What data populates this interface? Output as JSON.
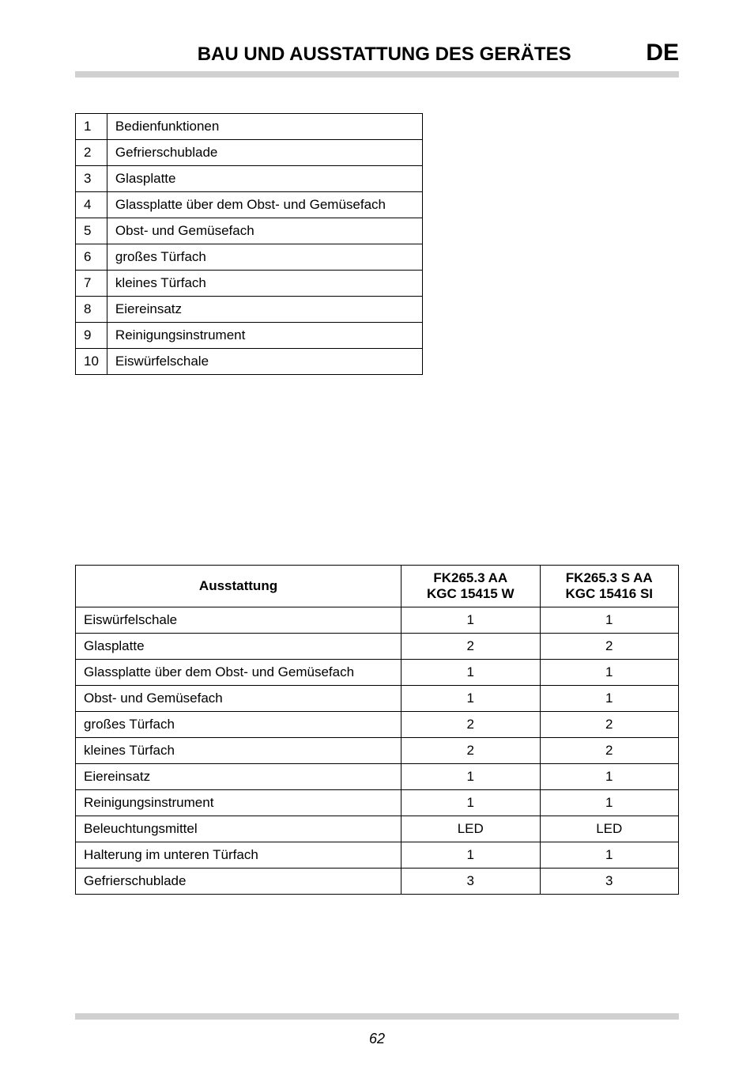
{
  "header": {
    "title": "BAU UND AUSSTATTUNG DES GERÄTES",
    "lang": "DE"
  },
  "parts_table": {
    "rows": [
      {
        "n": "1",
        "label": "Bedienfunktionen"
      },
      {
        "n": "2",
        "label": "Gefrierschublade"
      },
      {
        "n": "3",
        "label": "Glasplatte"
      },
      {
        "n": "4",
        "label": "Glassplatte über dem Obst- und Gemüsefach"
      },
      {
        "n": "5",
        "label": "Obst- und Gemüsefach"
      },
      {
        "n": "6",
        "label": "großes Türfach"
      },
      {
        "n": "7",
        "label": "kleines Türfach"
      },
      {
        "n": "8",
        "label": "Eiereinsatz"
      },
      {
        "n": "9",
        "label": "Reinigungsinstrument"
      },
      {
        "n": "10",
        "label": "Eiswürfelschale"
      }
    ]
  },
  "equip_table": {
    "head": {
      "c1": "Ausstattung",
      "c2a": "FK265.3 AA",
      "c2b": "KGC 15415 W",
      "c3a": "FK265.3 S AA",
      "c3b": "KGC 15416 SI"
    },
    "rows": [
      {
        "label": "Eiswürfelschale",
        "a": "1",
        "b": "1"
      },
      {
        "label": "Glasplatte",
        "a": "2",
        "b": "2"
      },
      {
        "label": "Glassplatte über dem Obst- und Gemüsefach",
        "a": "1",
        "b": "1"
      },
      {
        "label": "Obst- und Gemüsefach",
        "a": "1",
        "b": "1"
      },
      {
        "label": "großes Türfach",
        "a": "2",
        "b": "2"
      },
      {
        "label": "kleines Türfach",
        "a": "2",
        "b": "2"
      },
      {
        "label": "Eiereinsatz",
        "a": "1",
        "b": "1"
      },
      {
        "label": "Reinigungsinstrument",
        "a": "1",
        "b": "1"
      },
      {
        "label": "Beleuchtungsmittel",
        "a": "LED",
        "b": "LED"
      },
      {
        "label": "Halterung im unteren Türfach",
        "a": "1",
        "b": "1"
      },
      {
        "label": "Gefrierschublade",
        "a": "3",
        "b": "3"
      }
    ]
  },
  "page_number": "62"
}
